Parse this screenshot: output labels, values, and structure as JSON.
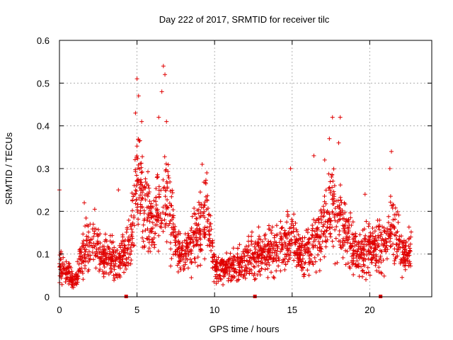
{
  "chart_data": {
    "type": "scatter",
    "title": "Day 222 of 2017, SRMTID for receiver tilc",
    "xlabel": "GPS time / hours",
    "ylabel": "SRMTID / TECUs",
    "xlim": [
      0,
      24
    ],
    "ylim": [
      0,
      0.6
    ],
    "x_ticks": [
      0,
      5,
      10,
      15,
      20
    ],
    "x_tick_labels": [
      "0",
      "5",
      "10",
      "15",
      "20"
    ],
    "y_ticks": [
      0,
      0.1,
      0.2,
      0.3,
      0.4,
      0.5,
      0.6
    ],
    "y_tick_labels": [
      "0",
      "0.1",
      "0.2",
      "0.3",
      "0.4",
      "0.5",
      "0.6"
    ],
    "grid": true,
    "marker": "plus",
    "series_color": "#e00000",
    "data_gap_markers_x": [
      4.3,
      12.6,
      20.7
    ],
    "activity_envelope": {
      "description": "approximate mean SRMTID level versus hour",
      "hours": [
        0,
        0.5,
        1,
        1.5,
        2,
        3,
        4,
        4.5,
        5,
        5.5,
        6,
        6.5,
        7,
        7.5,
        8,
        9,
        9.5,
        10,
        11,
        12,
        13,
        14,
        15,
        15.5,
        16,
        17,
        17.5,
        18,
        18.5,
        19,
        20,
        21,
        21.5,
        22,
        22.7
      ],
      "level": [
        0.07,
        0.06,
        0.03,
        0.1,
        0.13,
        0.09,
        0.08,
        0.12,
        0.25,
        0.2,
        0.15,
        0.2,
        0.22,
        0.11,
        0.08,
        0.15,
        0.18,
        0.06,
        0.07,
        0.08,
        0.1,
        0.11,
        0.13,
        0.09,
        0.1,
        0.15,
        0.21,
        0.18,
        0.14,
        0.1,
        0.11,
        0.11,
        0.17,
        0.1,
        0.1
      ]
    },
    "peaks": [
      {
        "x": 5.0,
        "y": 0.51
      },
      {
        "x": 5.1,
        "y": 0.47
      },
      {
        "x": 4.9,
        "y": 0.43
      },
      {
        "x": 6.7,
        "y": 0.54
      },
      {
        "x": 6.8,
        "y": 0.52
      },
      {
        "x": 6.6,
        "y": 0.48
      },
      {
        "x": 6.4,
        "y": 0.42
      },
      {
        "x": 6.9,
        "y": 0.41
      },
      {
        "x": 5.3,
        "y": 0.41
      },
      {
        "x": 9.2,
        "y": 0.31
      },
      {
        "x": 9.5,
        "y": 0.29
      },
      {
        "x": 14.9,
        "y": 0.3
      },
      {
        "x": 17.6,
        "y": 0.42
      },
      {
        "x": 18.1,
        "y": 0.42
      },
      {
        "x": 17.4,
        "y": 0.37
      },
      {
        "x": 18.0,
        "y": 0.36
      },
      {
        "x": 17.1,
        "y": 0.32
      },
      {
        "x": 21.4,
        "y": 0.34
      },
      {
        "x": 21.3,
        "y": 0.3
      },
      {
        "x": 16.4,
        "y": 0.33
      },
      {
        "x": 1.6,
        "y": 0.22
      },
      {
        "x": 3.8,
        "y": 0.25
      },
      {
        "x": 0.0,
        "y": 0.25
      },
      {
        "x": 19.7,
        "y": 0.24
      }
    ]
  }
}
